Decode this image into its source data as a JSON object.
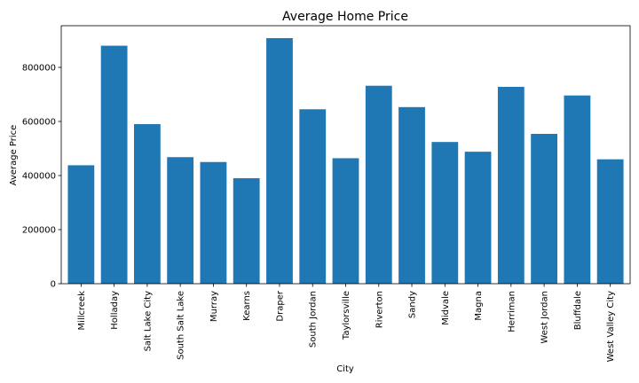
{
  "chart_data": {
    "type": "bar",
    "title": "Average Home Price",
    "xlabel": "City",
    "ylabel": "Average Price",
    "categories": [
      "Millcreek",
      "Holladay",
      "Salt Lake City",
      "South Salt Lake",
      "Murray",
      "Kearns",
      "Draper",
      "South Jordan",
      "Taylorsville",
      "Riverton",
      "Sandy",
      "Midvale",
      "Magna",
      "Herriman",
      "West Jordan",
      "Bluffdale",
      "West Valley City"
    ],
    "values": [
      438000,
      880000,
      590000,
      468000,
      450000,
      390000,
      908000,
      645000,
      464000,
      732000,
      653000,
      524000,
      488000,
      728000,
      554000,
      696000,
      460000
    ],
    "ylim": [
      0,
      954000
    ],
    "yticks": [
      0,
      200000,
      400000,
      600000,
      800000
    ],
    "grid": false,
    "bar_color": "#1f77b4"
  }
}
